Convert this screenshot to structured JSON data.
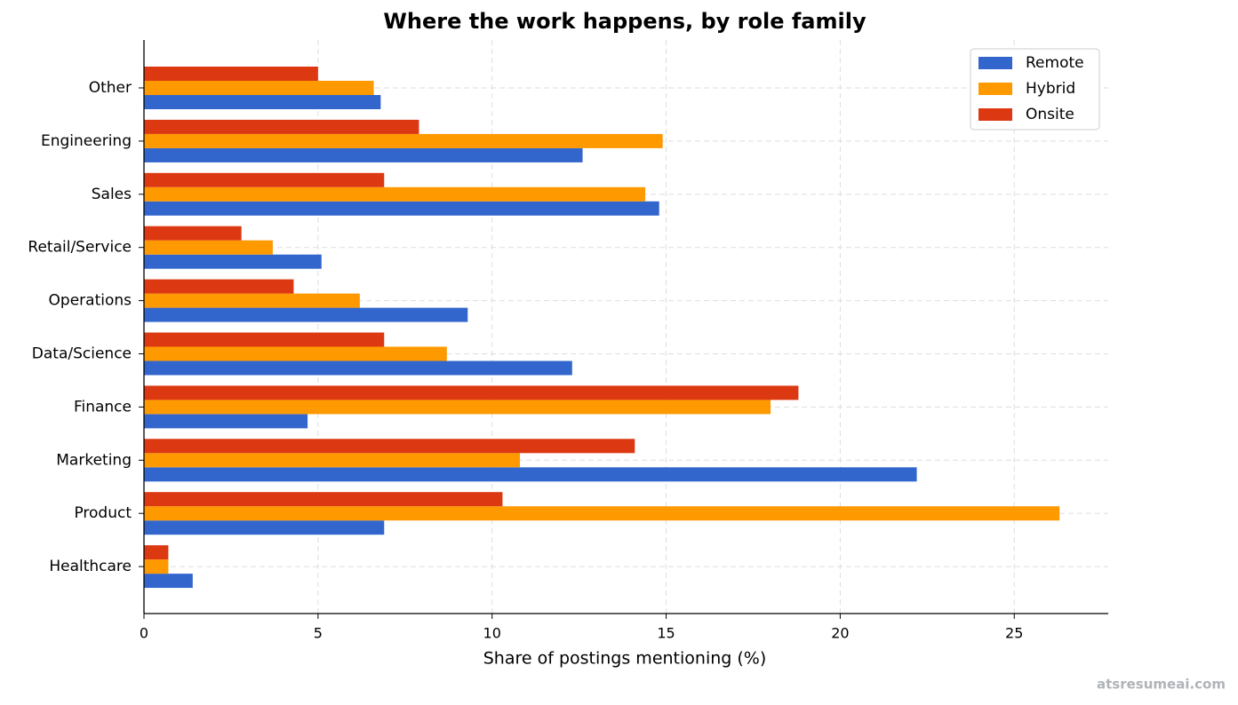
{
  "chart_data": {
    "type": "hbar",
    "title": "Where the work happens, by role family",
    "xlabel": "Share of postings mentioning (%)",
    "categories": [
      "Other",
      "Engineering",
      "Sales",
      "Retail/Service",
      "Operations",
      "Data/Science",
      "Finance",
      "Marketing",
      "Product",
      "Healthcare"
    ],
    "series": [
      {
        "name": "Remote",
        "color": "#3366cc",
        "values": [
          6.8,
          12.6,
          14.8,
          5.1,
          9.3,
          12.3,
          4.7,
          22.2,
          6.9,
          1.4
        ]
      },
      {
        "name": "Hybrid",
        "color": "#ff9900",
        "values": [
          6.6,
          14.9,
          14.4,
          3.7,
          6.2,
          8.7,
          18.0,
          10.8,
          26.3,
          0.7
        ]
      },
      {
        "name": "Onsite",
        "color": "#dc3912",
        "values": [
          5.0,
          7.9,
          6.9,
          2.8,
          4.3,
          6.9,
          18.8,
          14.1,
          10.3,
          0.7
        ]
      }
    ],
    "xlim": [
      0,
      27.7
    ],
    "xticks": [
      0,
      5,
      10,
      15,
      20,
      25
    ],
    "grid": true,
    "legend": "upper right",
    "watermark": "atsresumeai.com"
  }
}
